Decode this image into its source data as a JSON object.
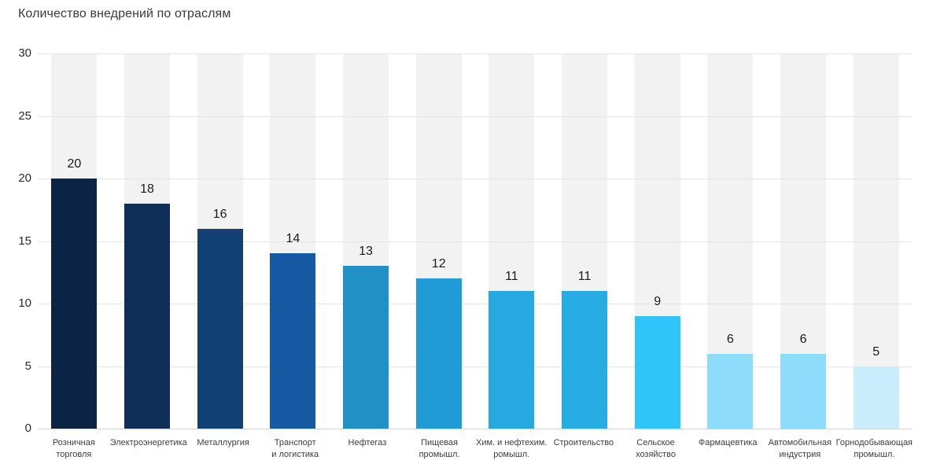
{
  "chart_data": {
    "type": "bar",
    "title": "Количество внедрений по отраслям",
    "xlabel": "",
    "ylabel": "",
    "ylim": [
      0,
      30
    ],
    "ymax": 30,
    "yticks": [
      0,
      5,
      10,
      15,
      20,
      25,
      30
    ],
    "grid": "horizontal",
    "legend": "none",
    "background_track_color": "#f2f2f2",
    "categories": [
      "Розничная торговля",
      "Электроэнергетика",
      "Металлургия",
      "Транспорт и логистика",
      "Нефтегаз",
      "Пищевая промышл.",
      "Хим. и нефтехим. ромышл.",
      "Строительство",
      "Сельское хозяйство",
      "Фармацевтика",
      "Автомобильная индустрия",
      "Горнодобывающая промышл."
    ],
    "values": [
      20,
      18,
      16,
      14,
      13,
      12,
      11,
      11,
      9,
      6,
      6,
      5
    ],
    "items": [
      {
        "label_lines": [
          "Розничная",
          "торговля"
        ],
        "value": 20,
        "color": "#0b2443"
      },
      {
        "label_lines": [
          "Электроэнергетика"
        ],
        "value": 18,
        "color": "#0f2f58"
      },
      {
        "label_lines": [
          "Металлургия"
        ],
        "value": 16,
        "color": "#124176"
      },
      {
        "label_lines": [
          "Транспорт",
          "и логистика"
        ],
        "value": 14,
        "color": "#155aa2"
      },
      {
        "label_lines": [
          "Нефтегаз"
        ],
        "value": 13,
        "color": "#2190c5"
      },
      {
        "label_lines": [
          "Пищевая",
          "промышл."
        ],
        "value": 12,
        "color": "#219bd5"
      },
      {
        "label_lines": [
          "Хим. и нефтехим.",
          "ромышл."
        ],
        "value": 11,
        "color": "#26a9e0"
      },
      {
        "label_lines": [
          "Строительство"
        ],
        "value": 11,
        "color": "#26abe2"
      },
      {
        "label_lines": [
          "Сельское",
          "хозяйство"
        ],
        "value": 9,
        "color": "#30c5f8"
      },
      {
        "label_lines": [
          "Фармацевтика"
        ],
        "value": 6,
        "color": "#8edcfb"
      },
      {
        "label_lines": [
          "Автомобильная",
          "индустрия"
        ],
        "value": 6,
        "color": "#8edcfb"
      },
      {
        "label_lines": [
          "Горнодобывающая",
          "промышл."
        ],
        "value": 5,
        "color": "#c9edfd"
      }
    ]
  }
}
